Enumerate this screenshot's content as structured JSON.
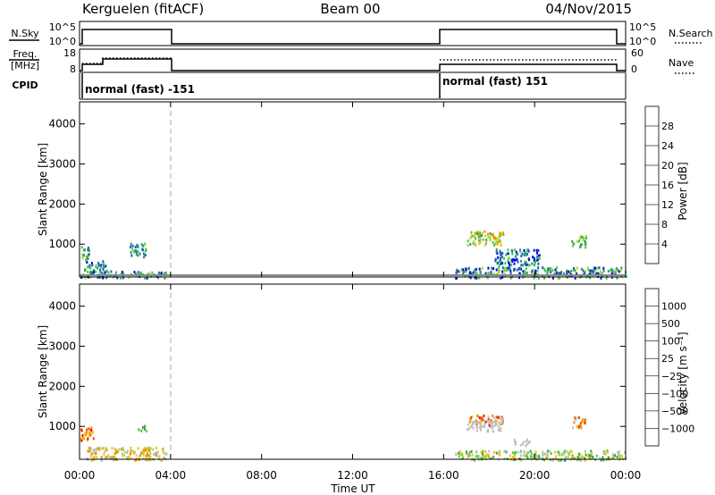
{
  "header": {
    "station": "Kerguelen (fitACF)",
    "beam": "Beam 00",
    "date": "04/Nov/2015"
  },
  "strip": {
    "nsky_label": "N.Sky",
    "nsearch_label": "N.Search",
    "freq_label_1": "Freq.",
    "freq_label_2": "[MHz]",
    "nave_label": "Nave",
    "cpid_label": "CPID",
    "nsky_ticks_left": [
      "10^5",
      "10^0"
    ],
    "nsky_ticks_right": [
      "10^5",
      "10^0"
    ],
    "freq_ticks_left": [
      "18",
      "8"
    ],
    "freq_ticks_right": [
      "60",
      "0"
    ],
    "cpid_segments": [
      {
        "start": 0,
        "end": 4,
        "label": "normal (fast) -151"
      },
      {
        "start": 16,
        "end": 24,
        "label": "normal (fast) 151"
      }
    ]
  },
  "chart_data": [
    {
      "type": "heatmap",
      "quantity": "power",
      "ylabel": "Slant Range [km]",
      "ylim": [
        180,
        4550
      ],
      "yticks": [
        "1000",
        "2000",
        "3000",
        "4000"
      ],
      "xlim": [
        0,
        24
      ],
      "colorbar_label": "Power [dB]",
      "colorbar_ticks": [
        "4",
        "8",
        "12",
        "16",
        "20",
        "24",
        "28"
      ],
      "colorbar_colors": [
        "#0000ee",
        "#1f5fb8",
        "#2a9c6a",
        "#3fcc3f",
        "#a8d838",
        "#f5c000",
        "#f28a00",
        "#ee0000"
      ],
      "scatter_regions": [
        {
          "t0": 0.0,
          "t1": 0.4,
          "r0": 600,
          "r1": 1000,
          "level": [
            1,
            4
          ]
        },
        {
          "t0": 0.2,
          "t1": 1.2,
          "r0": 300,
          "r1": 600,
          "level": [
            0,
            3
          ]
        },
        {
          "t0": 0.0,
          "t1": 3.8,
          "r0": 180,
          "r1": 350,
          "level": [
            0,
            4
          ]
        },
        {
          "t0": 2.2,
          "t1": 2.9,
          "r0": 700,
          "r1": 1050,
          "level": [
            1,
            3
          ]
        },
        {
          "t0": 17.0,
          "t1": 18.6,
          "r0": 1000,
          "r1": 1350,
          "level": [
            2,
            6
          ]
        },
        {
          "t0": 16.5,
          "t1": 24.0,
          "r0": 180,
          "r1": 450,
          "level": [
            0,
            4
          ]
        },
        {
          "t0": 18.2,
          "t1": 20.2,
          "r0": 500,
          "r1": 900,
          "level": [
            0,
            3
          ]
        },
        {
          "t0": 21.6,
          "t1": 22.3,
          "r0": 950,
          "r1": 1250,
          "level": [
            1,
            4
          ]
        }
      ]
    },
    {
      "type": "heatmap",
      "quantity": "velocity",
      "ylabel": "Slant Range [km]",
      "ylim": [
        180,
        4550
      ],
      "yticks": [
        "1000",
        "2000",
        "3000",
        "4000"
      ],
      "xlim": [
        0,
        24
      ],
      "xticks": [
        "00:00",
        "04:00",
        "08:00",
        "12:00",
        "16:00",
        "20:00",
        "00:00"
      ],
      "xlabel": "Time UT",
      "colorbar_label": "Velocity [m s⁻¹]",
      "colorbar_ticks": [
        "1000",
        "500",
        "100",
        "25",
        "−25",
        "−100",
        "−500",
        "−1000"
      ],
      "colorbar_colors": [
        "#2a4fc0",
        "#3a9a5a",
        "#4fc848",
        "#8fe070",
        "#c0c0c0",
        "#f5c000",
        "#f28a00",
        "#ea5500",
        "#ee0000"
      ],
      "scatter_regions": [
        {
          "t0": 0.0,
          "t1": 0.6,
          "r0": 650,
          "r1": 1000,
          "level": [
            5,
            8
          ]
        },
        {
          "t0": 0.3,
          "t1": 3.8,
          "r0": 180,
          "r1": 500,
          "level": [
            3,
            6
          ]
        },
        {
          "t0": 2.5,
          "t1": 2.9,
          "r0": 900,
          "r1": 1050,
          "level": [
            0,
            3
          ]
        },
        {
          "t0": 17.0,
          "t1": 18.6,
          "r0": 1050,
          "r1": 1300,
          "level": [
            4,
            8
          ]
        },
        {
          "t0": 17.0,
          "t1": 18.6,
          "r0": 900,
          "r1": 1150,
          "level": [
            4,
            4
          ]
        },
        {
          "t0": 16.5,
          "t1": 24.0,
          "r0": 180,
          "r1": 420,
          "level": [
            1,
            5
          ]
        },
        {
          "t0": 19.0,
          "t1": 19.8,
          "r0": 550,
          "r1": 700,
          "level": [
            4,
            4
          ]
        },
        {
          "t0": 21.6,
          "t1": 22.2,
          "r0": 950,
          "r1": 1250,
          "level": [
            4,
            7
          ]
        }
      ]
    }
  ]
}
